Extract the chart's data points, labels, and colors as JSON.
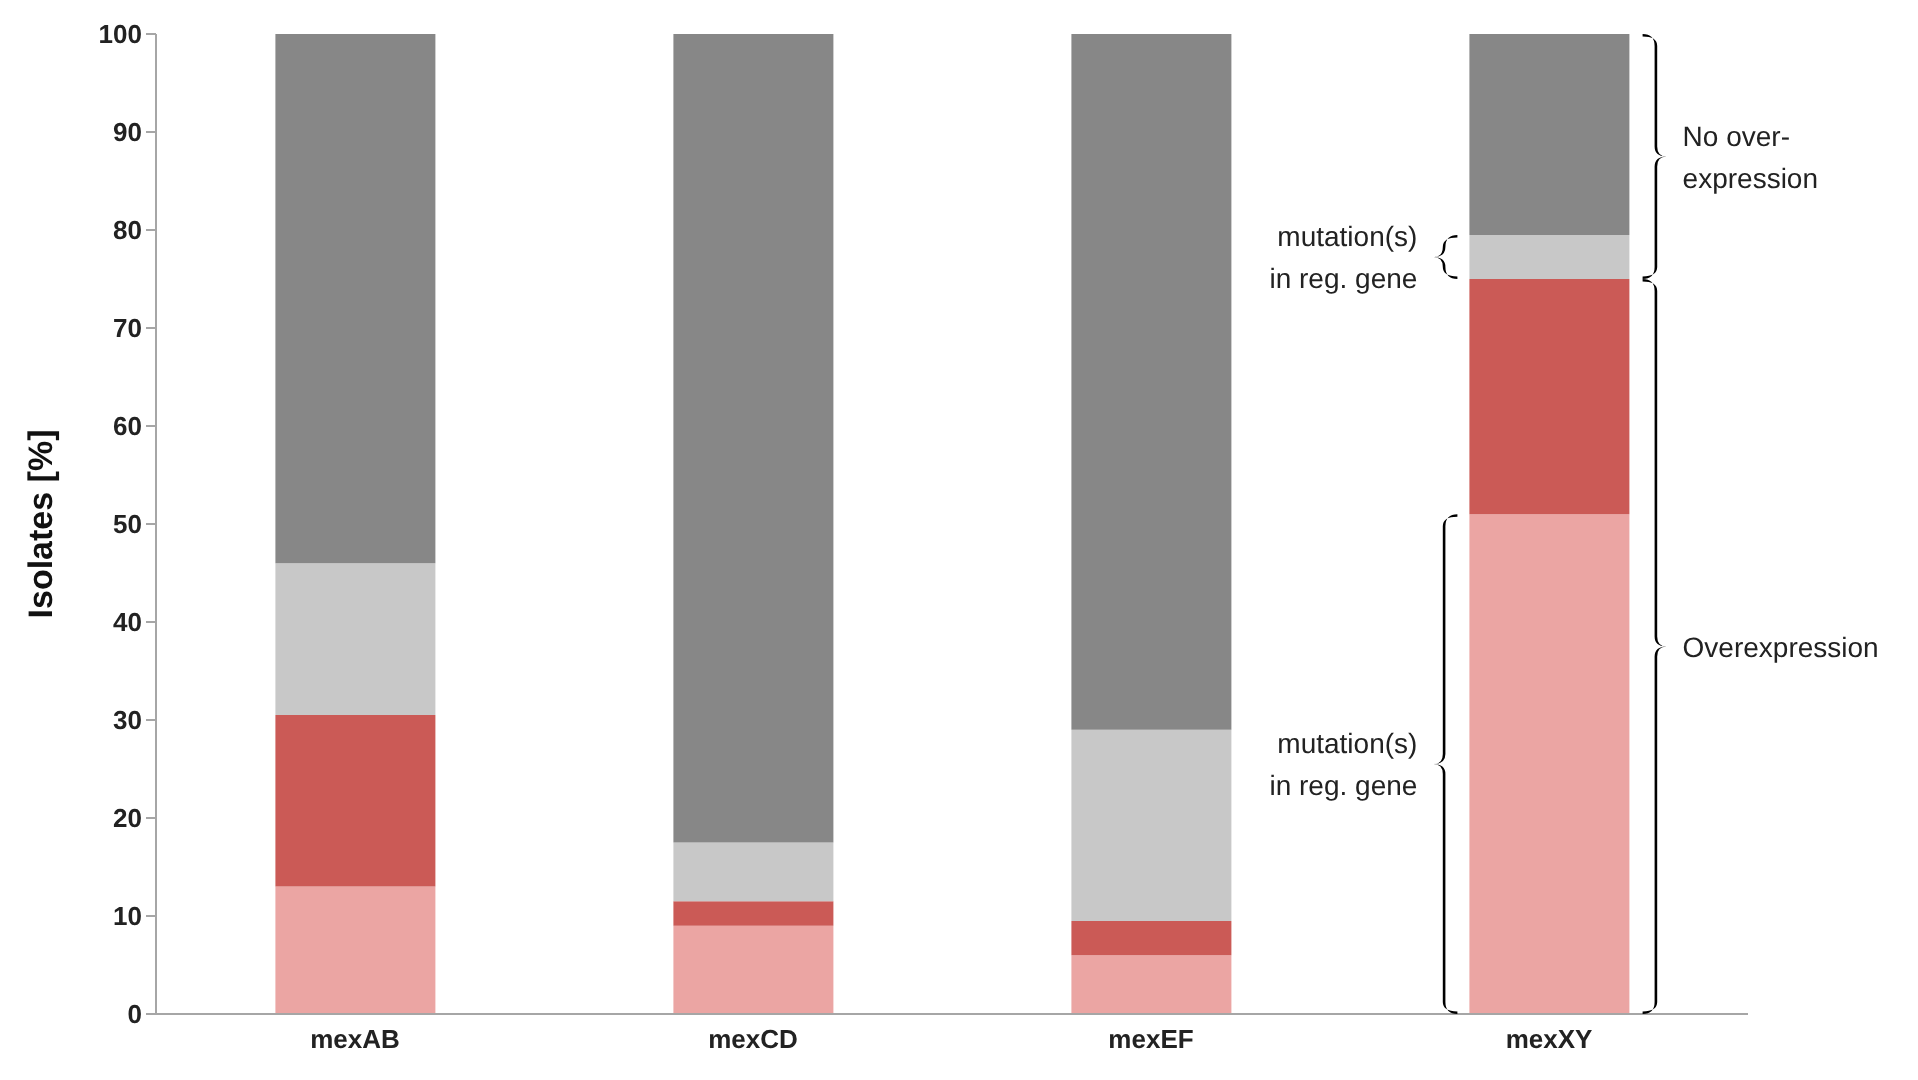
{
  "chart_data": {
    "type": "bar",
    "stacked": true,
    "ylabel": "Isolates [%]",
    "categories": [
      "mexAB",
      "mexCD",
      "mexEF",
      "mexXY"
    ],
    "series": [
      {
        "color": "#eba5a3",
        "values": [
          13,
          9,
          6,
          51
        ]
      },
      {
        "color": "#cb5a56",
        "values": [
          17.5,
          2.5,
          3.5,
          24
        ]
      },
      {
        "color": "#c8c8c8",
        "values": [
          15.5,
          6,
          19.5,
          4.5
        ]
      },
      {
        "color": "#878787",
        "values": [
          54,
          82.5,
          71,
          20.5
        ]
      }
    ],
    "ylim": [
      0,
      100
    ],
    "yticks": [
      0,
      10,
      20,
      30,
      40,
      50,
      60,
      70,
      80,
      90,
      100
    ],
    "annotations": [
      "No over-\nexpression",
      "mutation(s)\nin reg. gene",
      "Overexpression",
      "mutation(s)\nin reg. gene"
    ]
  }
}
